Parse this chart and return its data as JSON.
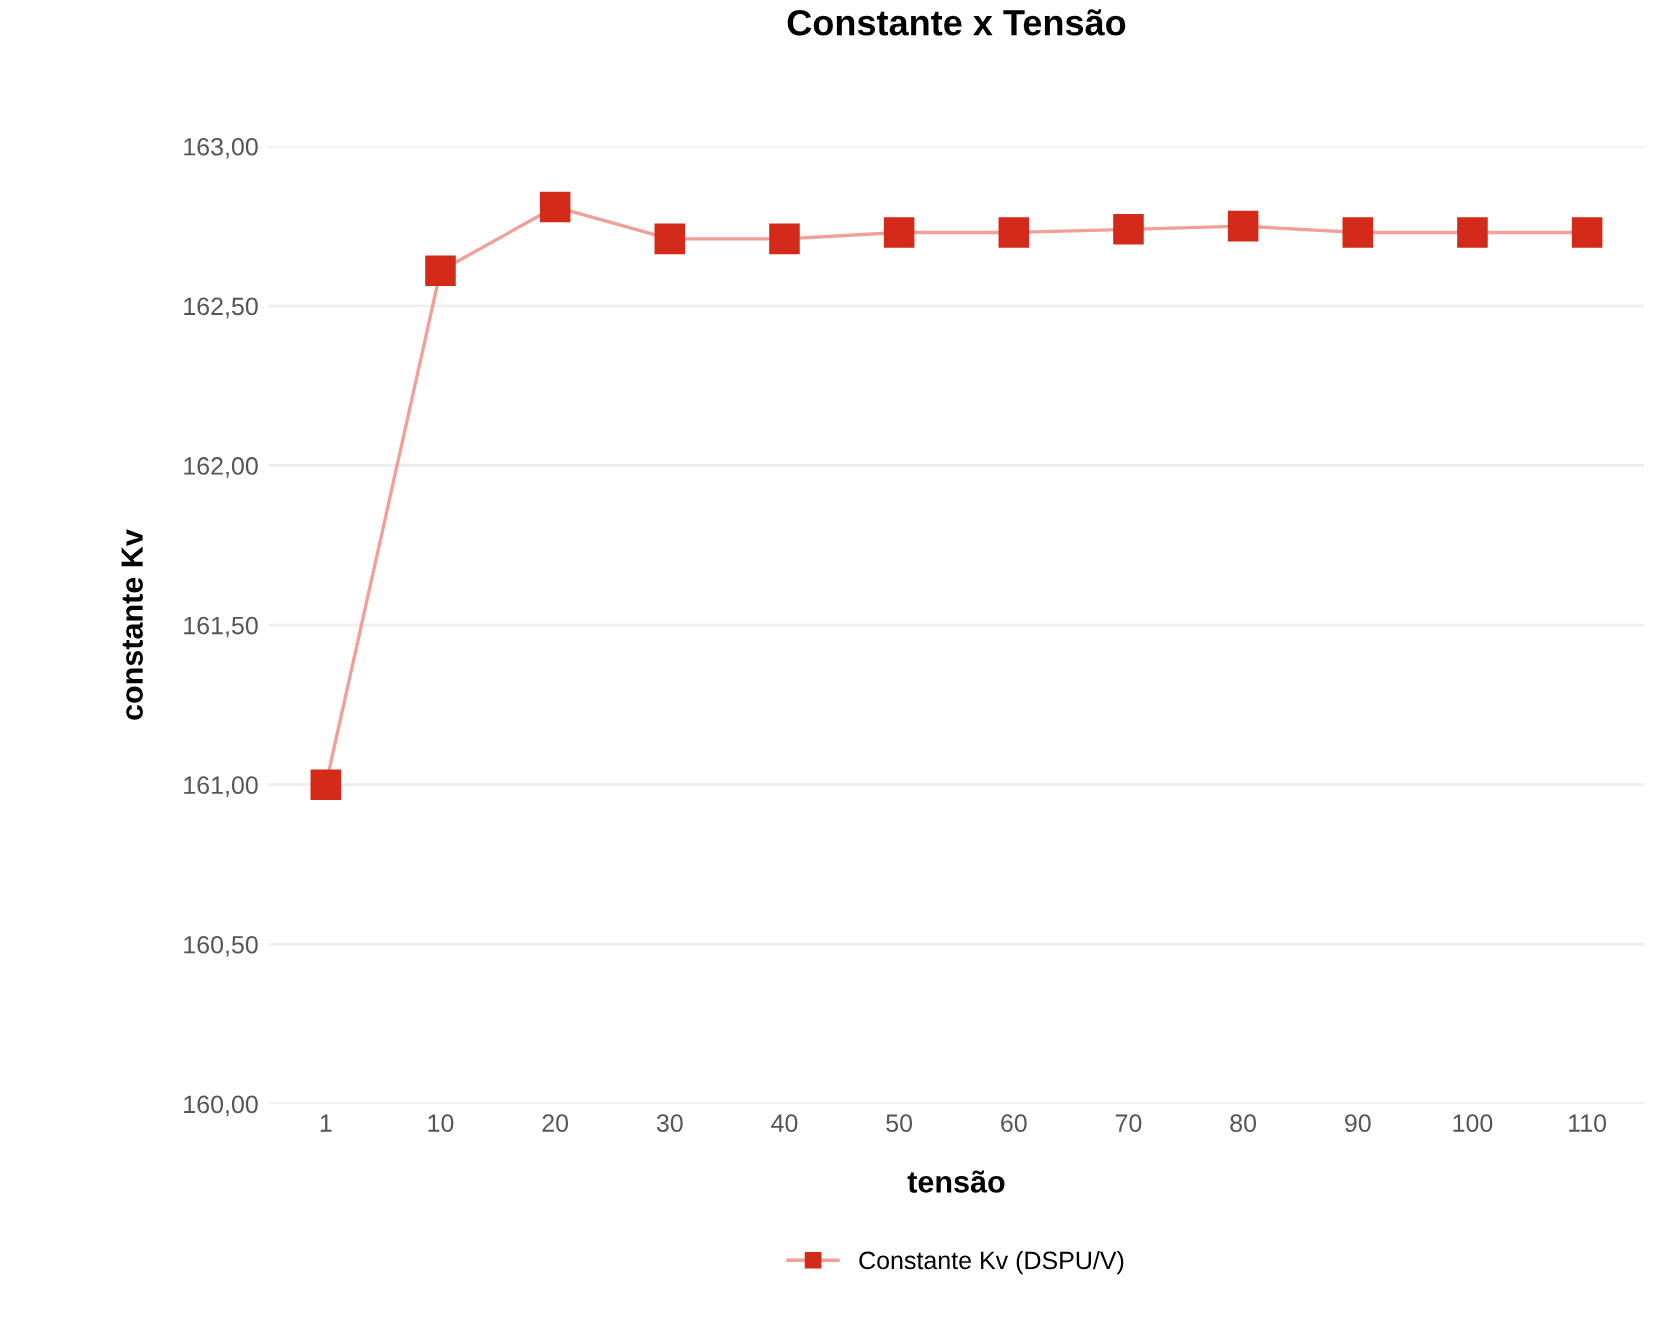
{
  "chart_data": {
    "type": "line",
    "title": "Constante x Tensão",
    "xlabel": "tensão",
    "ylabel": "constante Kv",
    "categories": [
      "1",
      "10",
      "20",
      "30",
      "40",
      "50",
      "60",
      "70",
      "80",
      "90",
      "100",
      "110"
    ],
    "series": [
      {
        "name": "Constante Kv (DSPU/V)",
        "color": "#d42a1a",
        "values": [
          161.0,
          162.61,
          162.81,
          162.71,
          162.71,
          162.73,
          162.73,
          162.74,
          162.75,
          162.73,
          162.73,
          162.73
        ]
      }
    ],
    "ylim": [
      160.0,
      163.0
    ],
    "yticks": [
      {
        "value": 160.0,
        "label": "160,00"
      },
      {
        "value": 160.5,
        "label": "160,50"
      },
      {
        "value": 161.0,
        "label": "161,00"
      },
      {
        "value": 161.5,
        "label": "161,50"
      },
      {
        "value": 162.0,
        "label": "162,00"
      },
      {
        "value": 162.5,
        "label": "162,50"
      },
      {
        "value": 163.0,
        "label": "163,00"
      }
    ],
    "grid": "y",
    "legend": "bottom",
    "marker": "square",
    "line_style": "solid"
  }
}
